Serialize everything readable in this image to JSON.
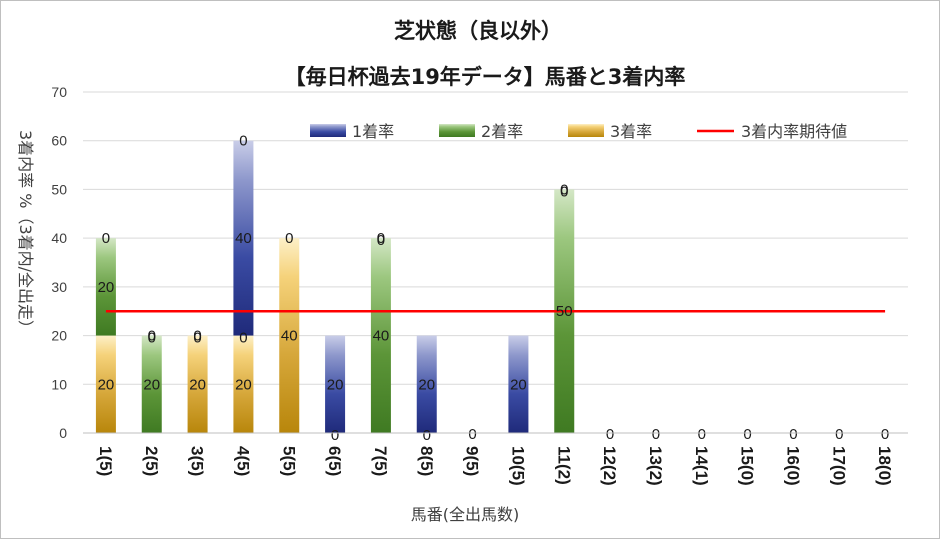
{
  "chart_data": {
    "type": "bar",
    "stacked": true,
    "title": "芝状態（良以外）",
    "subtitle": "【毎日杯過去19年データ】馬番と3着内率",
    "xlabel": "馬番(全出馬数)",
    "ylabel": "3着内率 %（3着内/全出走）",
    "ylim": [
      0,
      70
    ],
    "yticks": [
      0,
      10,
      20,
      30,
      40,
      50,
      60,
      70
    ],
    "grid": true,
    "legend_position": "top",
    "categories": [
      "1(5)",
      "2(5)",
      "3(5)",
      "4(5)",
      "5(5)",
      "6(5)",
      "7(5)",
      "8(5)",
      "9(5)",
      "10(5)",
      "11(2)",
      "12(2)",
      "13(2)",
      "14(1)",
      "15(0)",
      "16(0)",
      "17(0)",
      "18(0)"
    ],
    "series": [
      {
        "name": "1着率",
        "kind": "bar",
        "color": "#2e3a8c",
        "values": [
          0,
          0,
          0,
          40,
          0,
          20,
          0,
          20,
          0,
          20,
          0,
          0,
          0,
          0,
          0,
          0,
          0,
          0
        ]
      },
      {
        "name": "2着率",
        "kind": "bar",
        "color": "#4f8a2e",
        "values": [
          20,
          20,
          0,
          0,
          0,
          0,
          40,
          0,
          0,
          0,
          50,
          0,
          0,
          0,
          0,
          0,
          0,
          0
        ]
      },
      {
        "name": "3着率",
        "kind": "bar",
        "color": "#c8941a",
        "values": [
          20,
          0,
          20,
          20,
          40,
          0,
          0,
          0,
          0,
          0,
          0,
          0,
          0,
          0,
          0,
          0,
          0,
          0
        ]
      },
      {
        "name": "3着内率期待値",
        "kind": "line",
        "color": "#ff0000",
        "value": 25
      }
    ],
    "data_labels": {
      "1着率": [
        "",
        "0",
        "",
        "40",
        "",
        "20",
        "0",
        "20",
        "0",
        "20",
        "0",
        "0",
        "0",
        "0",
        "0",
        "0",
        "0",
        "0"
      ],
      "2着率": [
        "20",
        "20",
        "0",
        "0",
        "",
        "",
        "40",
        "",
        "",
        "",
        "50",
        "",
        "",
        "",
        "",
        "",
        "",
        ""
      ],
      "3着率": [
        "20",
        "",
        "20",
        "20",
        "40",
        "0",
        "",
        "0",
        "",
        "",
        "",
        "",
        "",
        "",
        "",
        "",
        "",
        ""
      ],
      "top": [
        "0",
        "0",
        "0",
        "0",
        "0",
        "",
        "0",
        "",
        "",
        "",
        "0",
        "",
        "",
        "",
        "",
        "",
        "",
        ""
      ]
    }
  }
}
